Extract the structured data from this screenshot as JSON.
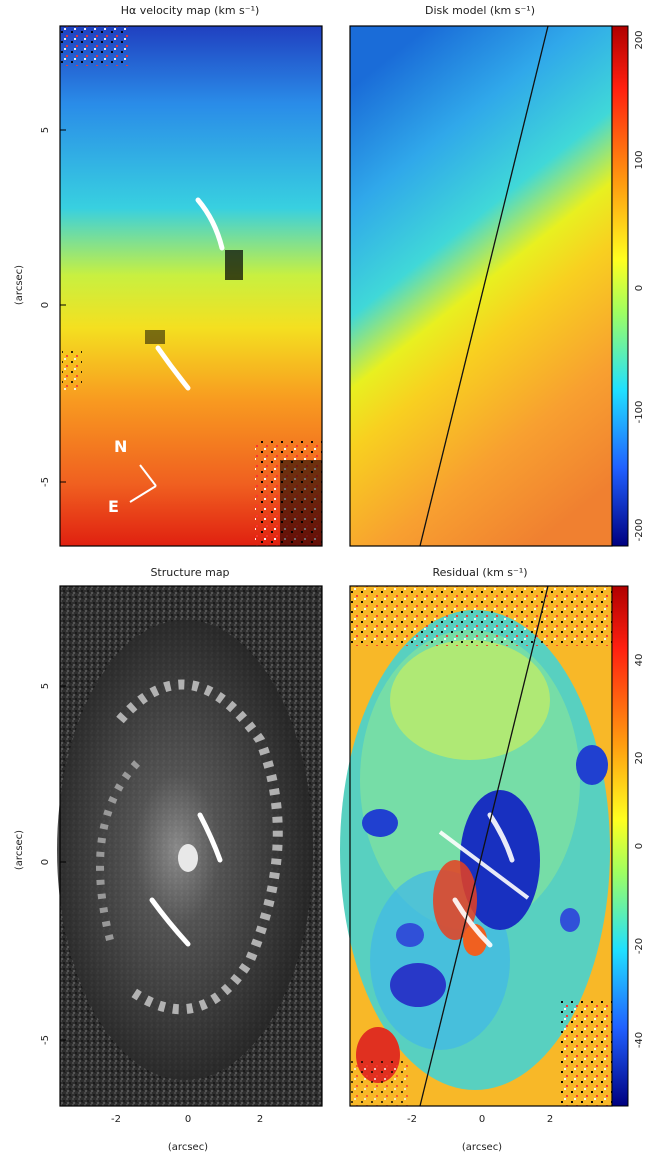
{
  "panels": {
    "ha_velocity": {
      "title": "Hα velocity map (km s⁻¹)",
      "compass_n": "N",
      "compass_e": "E"
    },
    "disk_model": {
      "title": "Disk model (km s⁻¹)",
      "colorbar_ticks": [
        "200",
        "100",
        "0",
        "-100",
        "-200"
      ]
    },
    "structure": {
      "title": "Structure map"
    },
    "residual": {
      "title": "Residual (km s⁻¹)",
      "colorbar_ticks": [
        "40",
        "20",
        "0",
        "-20",
        "-40"
      ]
    }
  },
  "axes": {
    "ylabel": "(arcsec)",
    "xlabel": "(arcsec)",
    "y_ticks": [
      "5",
      "0",
      "-5"
    ],
    "x_ticks": [
      "-2",
      "0",
      "2"
    ]
  },
  "colors": {
    "jet_red": "#cc1010",
    "jet_yellow": "#f4ee20",
    "jet_cyan": "#28c8e8",
    "jet_blue": "#1030c8"
  }
}
